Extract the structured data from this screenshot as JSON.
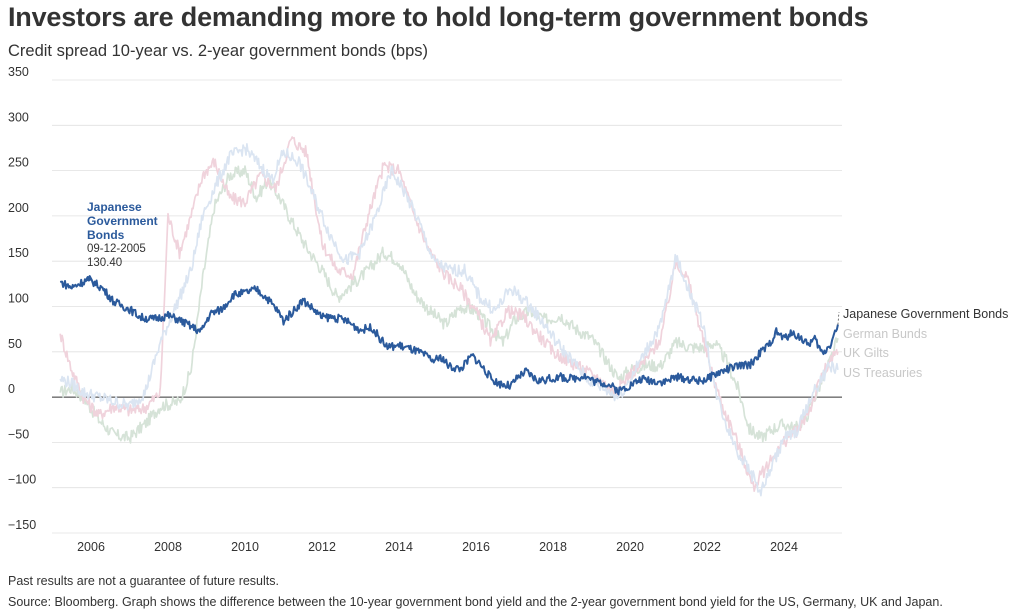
{
  "title": "Investors are demanding more to hold long-term government bonds",
  "subtitle": "Credit spread 10-year vs. 2-year government bonds (bps)",
  "footnote": "Past results are not a guarantee of future results.",
  "source": "Source: Bloomberg. Graph shows the difference between the 10-year government bond yield and the 2-year government bond yield for the US, Germany, UK and Japan.",
  "chart_data": {
    "type": "line",
    "x_label": "",
    "y_label": "",
    "x_range": [
      2005.0,
      2025.6
    ],
    "y_range": [
      -150,
      350
    ],
    "y_ticks": [
      -150,
      -100,
      -50,
      0,
      50,
      100,
      150,
      200,
      250,
      300,
      350
    ],
    "x_ticks": [
      2006,
      2008,
      2010,
      2012,
      2014,
      2016,
      2018,
      2020,
      2022,
      2024
    ],
    "grid": "horizontal",
    "legend": "direct labels at right end of lines",
    "annotation": {
      "series": "Japanese Government Bonds",
      "title": "Japanese Government Bonds",
      "title_lines": [
        "Japanese",
        "Government",
        "Bonds"
      ],
      "date": "09-12-2005",
      "value": "130.40",
      "x": 2005.94,
      "y": 130.4
    },
    "series": [
      {
        "name": "Japanese Government Bonds",
        "color": "#2b5a9c",
        "highlight": true,
        "points": [
          [
            2005.2,
            127
          ],
          [
            2005.5,
            121
          ],
          [
            2005.94,
            130.4
          ],
          [
            2006.3,
            120
          ],
          [
            2006.6,
            105
          ],
          [
            2007.0,
            97
          ],
          [
            2007.3,
            88
          ],
          [
            2007.6,
            86
          ],
          [
            2008.0,
            90
          ],
          [
            2008.3,
            85
          ],
          [
            2008.6,
            78
          ],
          [
            2008.85,
            72
          ],
          [
            2009.1,
            92
          ],
          [
            2009.4,
            97
          ],
          [
            2009.7,
            113
          ],
          [
            2010.0,
            115
          ],
          [
            2010.3,
            119
          ],
          [
            2010.6,
            108
          ],
          [
            2010.85,
            95
          ],
          [
            2011.0,
            84
          ],
          [
            2011.3,
            97
          ],
          [
            2011.5,
            107
          ],
          [
            2011.7,
            100
          ],
          [
            2012.0,
            88
          ],
          [
            2012.3,
            88
          ],
          [
            2012.6,
            85
          ],
          [
            2013.0,
            74
          ],
          [
            2013.3,
            77
          ],
          [
            2013.5,
            65
          ],
          [
            2013.7,
            55
          ],
          [
            2014.0,
            57
          ],
          [
            2014.3,
            53
          ],
          [
            2014.6,
            48
          ],
          [
            2014.9,
            40
          ],
          [
            2015.1,
            44
          ],
          [
            2015.3,
            34
          ],
          [
            2015.6,
            31
          ],
          [
            2015.9,
            46
          ],
          [
            2016.1,
            37
          ],
          [
            2016.4,
            20
          ],
          [
            2016.6,
            15
          ],
          [
            2016.9,
            12
          ],
          [
            2017.1,
            22
          ],
          [
            2017.3,
            28
          ],
          [
            2017.6,
            18
          ],
          [
            2017.9,
            20
          ],
          [
            2018.2,
            22
          ],
          [
            2018.5,
            20
          ],
          [
            2018.8,
            24
          ],
          [
            2019.1,
            17
          ],
          [
            2019.4,
            15
          ],
          [
            2019.7,
            7
          ],
          [
            2020.0,
            13
          ],
          [
            2020.3,
            20
          ],
          [
            2020.6,
            18
          ],
          [
            2020.9,
            17
          ],
          [
            2021.2,
            22
          ],
          [
            2021.5,
            20
          ],
          [
            2021.8,
            18
          ],
          [
            2022.0,
            20
          ],
          [
            2022.3,
            27
          ],
          [
            2022.6,
            32
          ],
          [
            2022.9,
            35
          ],
          [
            2023.1,
            35
          ],
          [
            2023.4,
            50
          ],
          [
            2023.6,
            57
          ],
          [
            2023.8,
            72
          ],
          [
            2024.0,
            65
          ],
          [
            2024.2,
            70
          ],
          [
            2024.4,
            67
          ],
          [
            2024.6,
            58
          ],
          [
            2024.8,
            64
          ],
          [
            2025.0,
            48
          ],
          [
            2025.2,
            58
          ],
          [
            2025.4,
            80
          ]
        ]
      },
      {
        "name": "German Bunds",
        "color": "#d6e3d8",
        "highlight": false,
        "points": [
          [
            2005.2,
            5
          ],
          [
            2005.5,
            10
          ],
          [
            2005.8,
            0
          ],
          [
            2006.2,
            -25
          ],
          [
            2006.6,
            -42
          ],
          [
            2007.0,
            -45
          ],
          [
            2007.4,
            -30
          ],
          [
            2007.8,
            -10
          ],
          [
            2008.3,
            -5
          ],
          [
            2008.6,
            30
          ],
          [
            2008.9,
            130
          ],
          [
            2009.2,
            210
          ],
          [
            2009.6,
            245
          ],
          [
            2010.0,
            250
          ],
          [
            2010.3,
            220
          ],
          [
            2010.6,
            240
          ],
          [
            2010.9,
            220
          ],
          [
            2011.2,
            195
          ],
          [
            2011.6,
            165
          ],
          [
            2012.0,
            140
          ],
          [
            2012.4,
            110
          ],
          [
            2012.8,
            125
          ],
          [
            2013.2,
            140
          ],
          [
            2013.6,
            160
          ],
          [
            2014.0,
            150
          ],
          [
            2014.4,
            115
          ],
          [
            2014.8,
            95
          ],
          [
            2015.2,
            80
          ],
          [
            2015.6,
            100
          ],
          [
            2016.0,
            95
          ],
          [
            2016.4,
            75
          ],
          [
            2016.7,
            60
          ],
          [
            2017.0,
            85
          ],
          [
            2017.4,
            95
          ],
          [
            2017.8,
            85
          ],
          [
            2018.2,
            90
          ],
          [
            2018.6,
            75
          ],
          [
            2019.0,
            65
          ],
          [
            2019.4,
            40
          ],
          [
            2019.7,
            20
          ],
          [
            2020.0,
            30
          ],
          [
            2020.4,
            35
          ],
          [
            2020.8,
            35
          ],
          [
            2021.2,
            60
          ],
          [
            2021.6,
            55
          ],
          [
            2021.9,
            55
          ],
          [
            2022.2,
            60
          ],
          [
            2022.5,
            40
          ],
          [
            2022.8,
            10
          ],
          [
            2023.1,
            -35
          ],
          [
            2023.4,
            -45
          ],
          [
            2023.7,
            -35
          ],
          [
            2024.0,
            -30
          ],
          [
            2024.3,
            -35
          ],
          [
            2024.6,
            -20
          ],
          [
            2024.9,
            10
          ],
          [
            2025.2,
            40
          ],
          [
            2025.4,
            65
          ]
        ]
      },
      {
        "name": "UK Gilts",
        "color": "#f0d3dc",
        "highlight": false,
        "points": [
          [
            2005.2,
            70
          ],
          [
            2005.5,
            30
          ],
          [
            2005.8,
            0
          ],
          [
            2006.2,
            -20
          ],
          [
            2006.6,
            -10
          ],
          [
            2007.0,
            -15
          ],
          [
            2007.4,
            -12
          ],
          [
            2007.8,
            5
          ],
          [
            2008.0,
            200
          ],
          [
            2008.3,
            160
          ],
          [
            2008.6,
            200
          ],
          [
            2008.9,
            245
          ],
          [
            2009.2,
            260
          ],
          [
            2009.6,
            220
          ],
          [
            2010.0,
            215
          ],
          [
            2010.4,
            245
          ],
          [
            2010.8,
            230
          ],
          [
            2011.2,
            285
          ],
          [
            2011.6,
            270
          ],
          [
            2012.0,
            170
          ],
          [
            2012.4,
            140
          ],
          [
            2012.8,
            135
          ],
          [
            2013.2,
            200
          ],
          [
            2013.6,
            255
          ],
          [
            2014.0,
            250
          ],
          [
            2014.4,
            200
          ],
          [
            2014.8,
            160
          ],
          [
            2015.2,
            135
          ],
          [
            2015.6,
            120
          ],
          [
            2016.0,
            95
          ],
          [
            2016.4,
            60
          ],
          [
            2016.8,
            95
          ],
          [
            2017.2,
            90
          ],
          [
            2017.6,
            70
          ],
          [
            2018.0,
            50
          ],
          [
            2018.4,
            40
          ],
          [
            2018.8,
            30
          ],
          [
            2019.2,
            20
          ],
          [
            2019.6,
            5
          ],
          [
            2020.0,
            25
          ],
          [
            2020.4,
            40
          ],
          [
            2020.8,
            65
          ],
          [
            2021.2,
            150
          ],
          [
            2021.5,
            130
          ],
          [
            2021.8,
            80
          ],
          [
            2022.1,
            30
          ],
          [
            2022.4,
            -10
          ],
          [
            2022.7,
            -40
          ],
          [
            2023.0,
            -75
          ],
          [
            2023.2,
            -100
          ],
          [
            2023.5,
            -80
          ],
          [
            2023.8,
            -60
          ],
          [
            2024.1,
            -45
          ],
          [
            2024.4,
            -35
          ],
          [
            2024.7,
            -10
          ],
          [
            2025.0,
            25
          ],
          [
            2025.3,
            45
          ],
          [
            2025.4,
            50
          ]
        ]
      },
      {
        "name": "US Treasuries",
        "color": "#dbe5f2",
        "highlight": false,
        "points": [
          [
            2005.2,
            20
          ],
          [
            2005.5,
            15
          ],
          [
            2005.8,
            5
          ],
          [
            2006.2,
            0
          ],
          [
            2006.6,
            -5
          ],
          [
            2007.0,
            -10
          ],
          [
            2007.4,
            5
          ],
          [
            2007.8,
            60
          ],
          [
            2008.2,
            100
          ],
          [
            2008.6,
            140
          ],
          [
            2008.9,
            200
          ],
          [
            2009.2,
            230
          ],
          [
            2009.6,
            265
          ],
          [
            2010.0,
            275
          ],
          [
            2010.3,
            260
          ],
          [
            2010.7,
            240
          ],
          [
            2011.0,
            270
          ],
          [
            2011.4,
            260
          ],
          [
            2011.8,
            220
          ],
          [
            2012.2,
            180
          ],
          [
            2012.6,
            150
          ],
          [
            2013.0,
            160
          ],
          [
            2013.4,
            200
          ],
          [
            2013.8,
            250
          ],
          [
            2014.1,
            230
          ],
          [
            2014.5,
            195
          ],
          [
            2014.9,
            150
          ],
          [
            2015.3,
            140
          ],
          [
            2015.7,
            140
          ],
          [
            2016.1,
            110
          ],
          [
            2016.5,
            95
          ],
          [
            2016.9,
            120
          ],
          [
            2017.3,
            105
          ],
          [
            2017.7,
            85
          ],
          [
            2018.1,
            60
          ],
          [
            2018.5,
            40
          ],
          [
            2018.9,
            20
          ],
          [
            2019.3,
            10
          ],
          [
            2019.7,
            0
          ],
          [
            2020.0,
            20
          ],
          [
            2020.4,
            50
          ],
          [
            2020.8,
            80
          ],
          [
            2021.2,
            155
          ],
          [
            2021.6,
            110
          ],
          [
            2021.9,
            80
          ],
          [
            2022.2,
            10
          ],
          [
            2022.5,
            -30
          ],
          [
            2022.8,
            -60
          ],
          [
            2023.1,
            -80
          ],
          [
            2023.4,
            -105
          ],
          [
            2023.7,
            -75
          ],
          [
            2024.0,
            -45
          ],
          [
            2024.3,
            -40
          ],
          [
            2024.6,
            -10
          ],
          [
            2024.9,
            15
          ],
          [
            2025.2,
            35
          ],
          [
            2025.4,
            30
          ]
        ]
      }
    ]
  },
  "labels": {
    "jgb": "Japanese Government Bonds",
    "bund": "German Bunds",
    "gilt": "UK Gilts",
    "ust": "US Treasuries"
  },
  "colors": {
    "text": "#333333",
    "grid": "#e0e0e0",
    "zero_line": "#333333",
    "muted_label": "#c8c8c8"
  }
}
